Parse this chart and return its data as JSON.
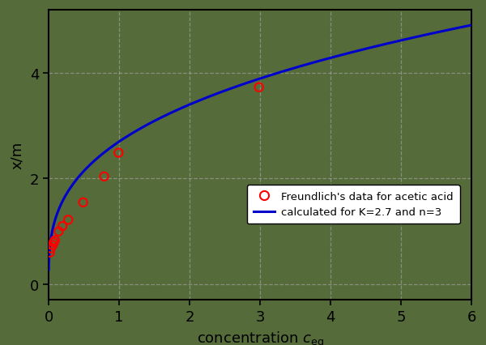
{
  "background_color": "#556b3a",
  "plot_bg_color": "#556b3a",
  "line_color": "#0000cc",
  "scatter_color": "#ff0000",
  "K": 2.7,
  "n": 3,
  "xlim": [
    0,
    6.0
  ],
  "ylim": [
    -0.3,
    5.2
  ],
  "xticks": [
    0,
    1,
    2,
    3,
    4,
    5,
    6
  ],
  "yticks": [
    0,
    2,
    4
  ],
  "ylabel": "x/m",
  "legend_label1": "Freundlich's data for acetic acid",
  "legend_label2": "calculated for K=2.7 and n=3",
  "scatter_x": [
    0.018,
    0.031,
    0.058,
    0.072,
    0.09,
    0.143,
    0.196,
    0.279,
    0.49,
    0.788,
    0.993,
    2.985
  ],
  "scatter_y": [
    0.6,
    0.68,
    0.74,
    0.79,
    0.83,
    1.0,
    1.1,
    1.22,
    1.55,
    2.04,
    2.49,
    3.73
  ],
  "grid_color": "#aaaaaa",
  "grid_style": "--",
  "grid_alpha": 0.6,
  "line_width": 2.2,
  "scatter_size": 55,
  "scatter_linewidth": 1.5,
  "tick_labelsize": 13,
  "xlabel_fontsize": 13,
  "ylabel_fontsize": 13
}
